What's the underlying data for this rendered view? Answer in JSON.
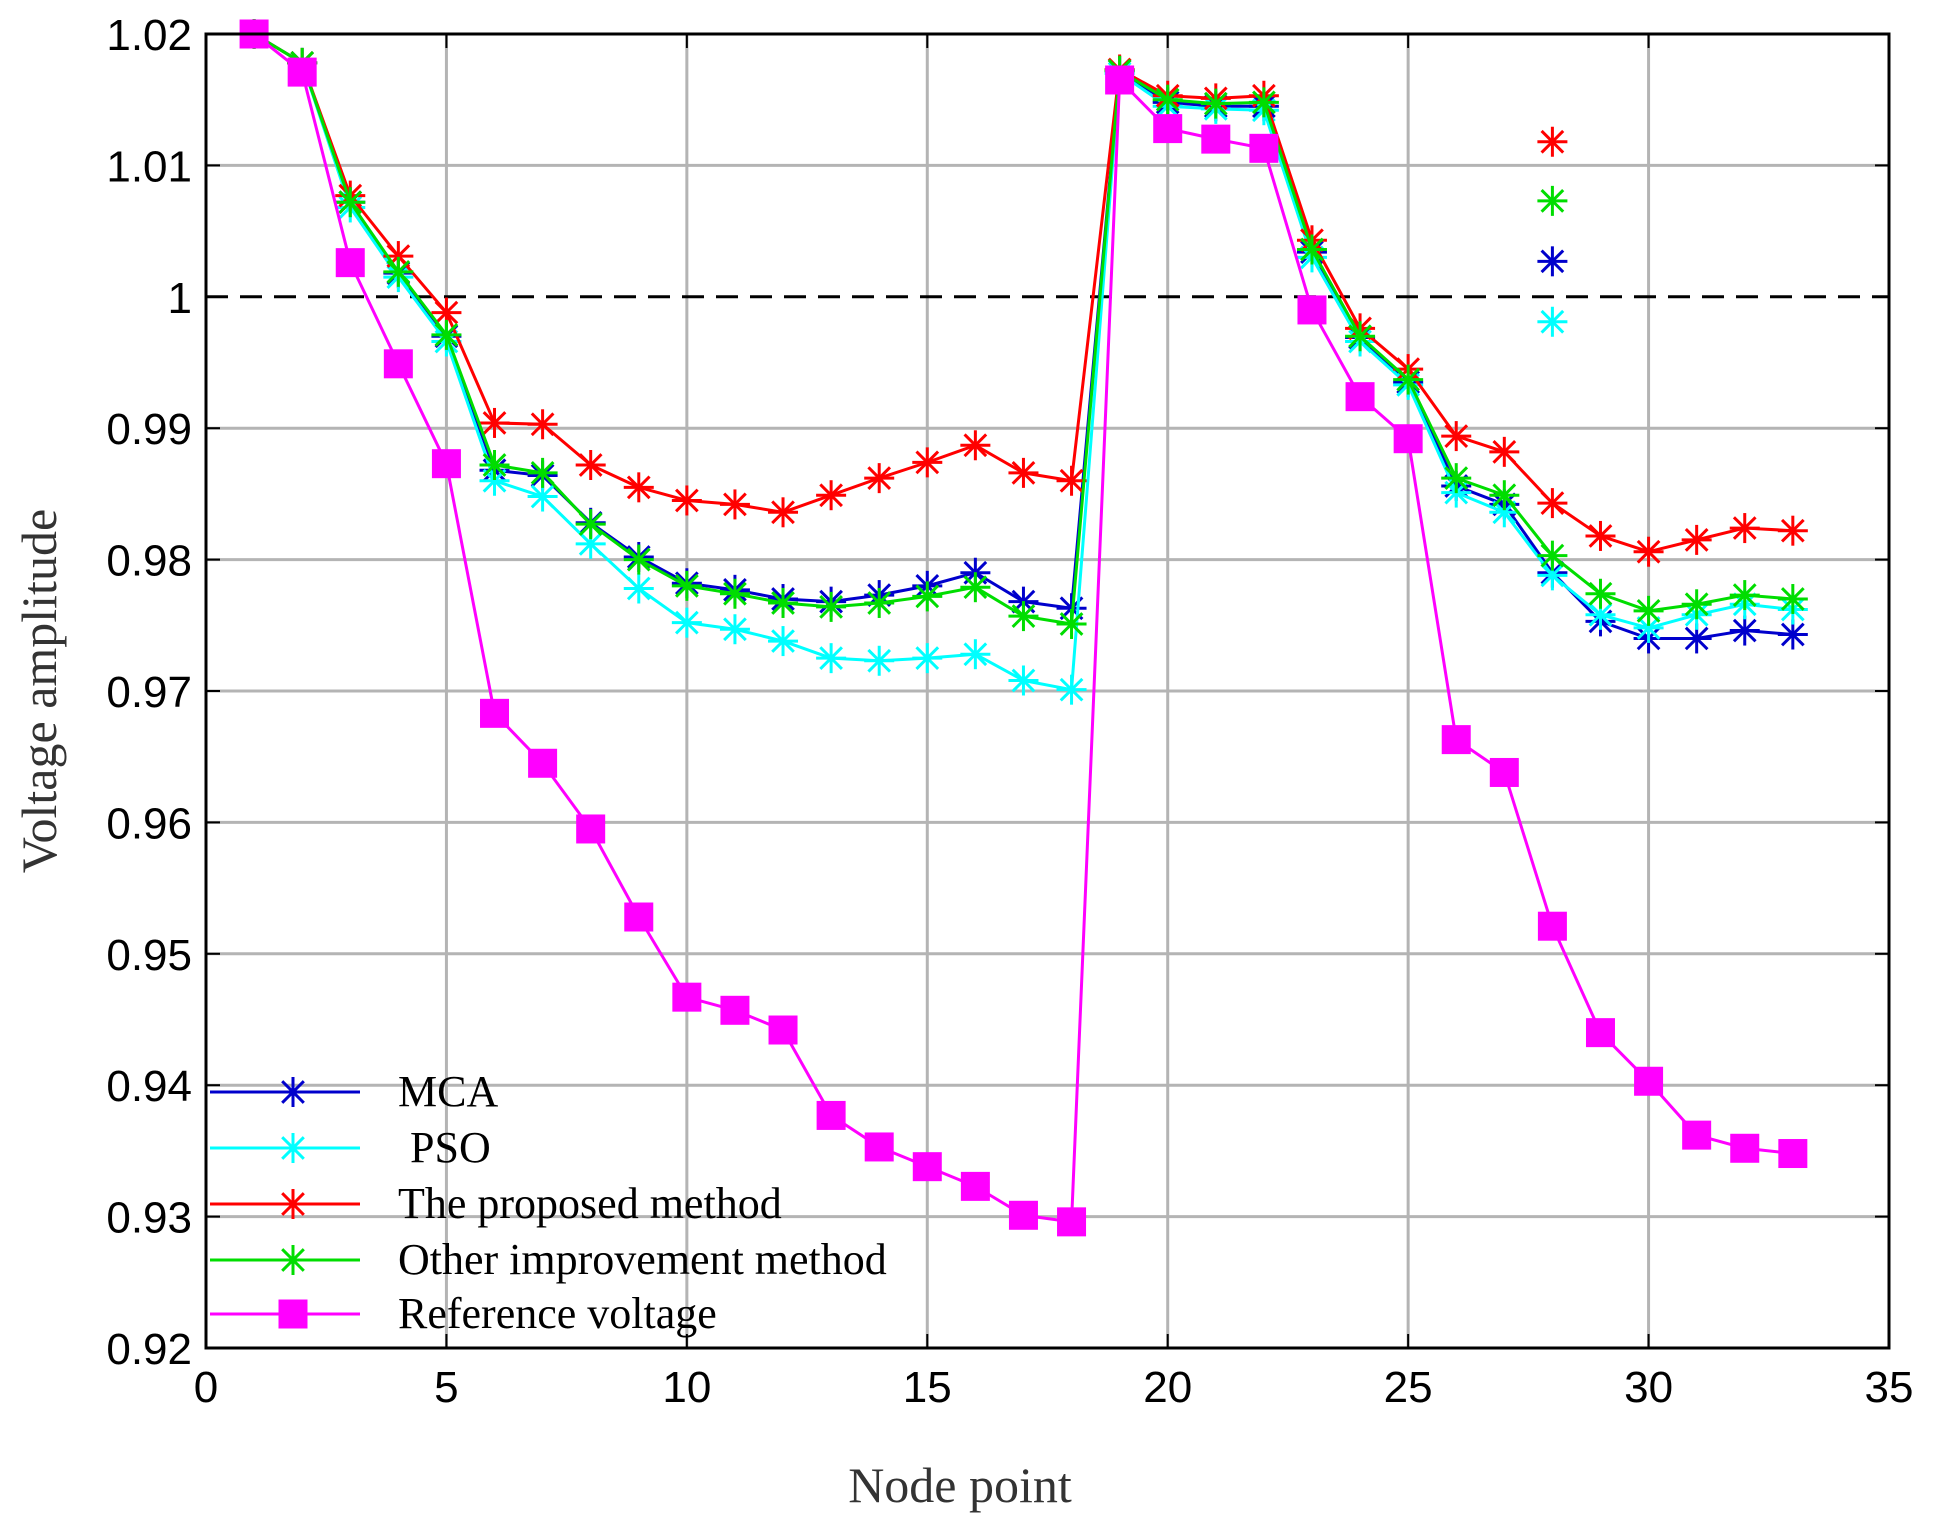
{
  "chart_data": {
    "type": "line",
    "title": "",
    "xlabel": "Node point",
    "ylabel": "Voltage amplitude",
    "xlim": [
      0,
      35
    ],
    "ylim": [
      0.92,
      1.02
    ],
    "xticks": [
      0,
      5,
      10,
      15,
      20,
      25,
      30,
      35
    ],
    "yticks": [
      0.92,
      0.93,
      0.94,
      0.95,
      0.96,
      0.97,
      0.98,
      0.99,
      1,
      1.01,
      1.02
    ],
    "xtick_labels": [
      "0",
      "5",
      "10",
      "15",
      "20",
      "25",
      "30",
      "35"
    ],
    "ytick_labels": [
      "0.92",
      "0.93",
      "0.94",
      "0.95",
      "0.96",
      "0.97",
      "0.98",
      "0.99",
      "1",
      "1.01",
      "1.02"
    ],
    "grid": true,
    "reference_line": {
      "y": 1.0,
      "style": "dashed",
      "color": "#000000"
    },
    "legend_position": "bottom-left",
    "series": [
      {
        "name": "MCA",
        "color": "#0000cc",
        "marker": "asterisk",
        "x": [
          1,
          2,
          3,
          4,
          5,
          6,
          7,
          8,
          9,
          10,
          11,
          12,
          13,
          14,
          15,
          16,
          17,
          18,
          19,
          20,
          21,
          22,
          23,
          24,
          25,
          26,
          27,
          28,
          29,
          30,
          31,
          32,
          33
        ],
        "values": [
          1.02,
          1.0178,
          1.0072,
          1.0018,
          0.997,
          0.9868,
          0.9864,
          0.9828,
          0.9802,
          0.9782,
          0.9777,
          0.977,
          0.9768,
          0.9773,
          0.978,
          0.979,
          0.9768,
          0.9763,
          1.0172,
          1.0148,
          1.0145,
          1.0145,
          1.0034,
          0.9969,
          0.9935,
          0.9856,
          0.9842,
          0.979,
          0.9753,
          0.974,
          0.974,
          0.9746,
          0.9743
        ]
      },
      {
        "name": "PSO",
        "color": "#00ffff",
        "marker": "asterisk",
        "x": [
          1,
          2,
          3,
          4,
          5,
          6,
          7,
          8,
          9,
          10,
          11,
          12,
          13,
          14,
          15,
          16,
          17,
          18,
          19,
          20,
          21,
          22,
          23,
          24,
          25,
          26,
          27,
          28,
          29,
          30,
          31,
          32,
          33
        ],
        "values": [
          1.02,
          1.0178,
          1.0068,
          1.0015,
          0.9966,
          0.986,
          0.9848,
          0.9812,
          0.9778,
          0.9752,
          0.9747,
          0.9738,
          0.9725,
          0.9723,
          0.9725,
          0.9728,
          0.9708,
          0.9701,
          1.017,
          1.0145,
          1.0143,
          1.0142,
          1.003,
          0.9966,
          0.9933,
          0.9851,
          0.9836,
          0.9788,
          0.9758,
          0.9748,
          0.9758,
          0.9766,
          0.9762
        ]
      },
      {
        "name": "The proposed method",
        "color": "#ff0000",
        "marker": "asterisk",
        "x": [
          1,
          2,
          3,
          4,
          5,
          6,
          7,
          8,
          9,
          10,
          11,
          12,
          13,
          14,
          15,
          16,
          17,
          18,
          19,
          20,
          21,
          22,
          23,
          24,
          25,
          26,
          27,
          28,
          29,
          30,
          31,
          32,
          33
        ],
        "values": [
          1.02,
          1.0178,
          1.0077,
          1.0031,
          0.9988,
          0.9904,
          0.9903,
          0.9872,
          0.9855,
          0.9845,
          0.9842,
          0.9836,
          0.9849,
          0.9862,
          0.9874,
          0.9887,
          0.9866,
          0.986,
          1.0173,
          1.0153,
          1.0151,
          1.0153,
          1.0043,
          0.9976,
          0.9945,
          0.9894,
          0.9882,
          0.9843,
          0.9818,
          0.9806,
          0.9815,
          0.9824,
          0.9822
        ]
      },
      {
        "name": "Other improvement method",
        "color": "#00dd00",
        "marker": "asterisk",
        "x": [
          1,
          2,
          3,
          4,
          5,
          6,
          7,
          8,
          9,
          10,
          11,
          12,
          13,
          14,
          15,
          16,
          17,
          18,
          19,
          20,
          21,
          22,
          23,
          24,
          25,
          26,
          27,
          28,
          29,
          30,
          31,
          32,
          33
        ],
        "values": [
          1.02,
          1.0178,
          1.0072,
          1.0019,
          0.9971,
          0.9872,
          0.9866,
          0.9827,
          0.98,
          0.978,
          0.9774,
          0.9767,
          0.9764,
          0.9767,
          0.9772,
          0.9779,
          0.9757,
          0.9751,
          1.0172,
          1.015,
          1.0147,
          1.0148,
          1.0036,
          0.997,
          0.9937,
          0.9862,
          0.9849,
          0.9803,
          0.9774,
          0.9761,
          0.9766,
          0.9773,
          0.977
        ]
      },
      {
        "name": "Reference voltage",
        "color": "#ff00ff",
        "marker": "square",
        "x": [
          1,
          2,
          3,
          4,
          5,
          6,
          7,
          8,
          9,
          10,
          11,
          12,
          13,
          14,
          15,
          16,
          17,
          18,
          19,
          20,
          21,
          22,
          23,
          24,
          25,
          26,
          27,
          28,
          29,
          30,
          31,
          32,
          33
        ],
        "values": [
          1.02,
          1.0171,
          1.0026,
          0.9949,
          0.9873,
          0.9683,
          0.9645,
          0.9595,
          0.9528,
          0.9467,
          0.9457,
          0.9442,
          0.9377,
          0.9353,
          0.9338,
          0.9323,
          0.9301,
          0.9296,
          1.0165,
          1.0128,
          1.012,
          1.0113,
          0.999,
          0.9924,
          0.9892,
          0.9663,
          0.9638,
          0.9521,
          0.944,
          0.9403,
          0.9362,
          0.9352,
          0.9348
        ]
      }
    ]
  }
}
